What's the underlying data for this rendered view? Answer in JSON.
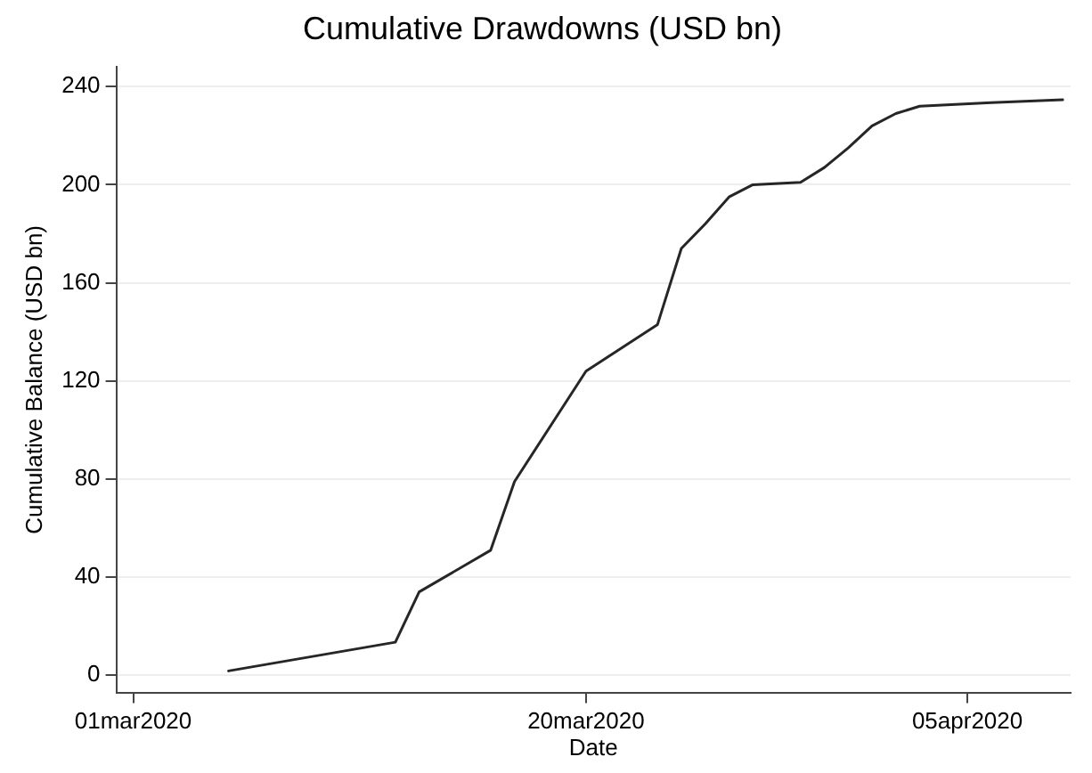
{
  "chart_data": {
    "type": "line",
    "title": "Cumulative Drawdowns (USD bn)",
    "xlabel": "Date",
    "ylabel": "Cumulative Balance (USD bn)",
    "x": [
      "2020-03-05",
      "2020-03-12",
      "2020-03-13",
      "2020-03-16",
      "2020-03-17",
      "2020-03-20",
      "2020-03-23",
      "2020-03-24",
      "2020-03-25",
      "2020-03-26",
      "2020-03-27",
      "2020-03-29",
      "2020-03-30",
      "2020-03-31",
      "2020-04-01",
      "2020-04-02",
      "2020-04-03",
      "2020-04-06",
      "2020-04-09"
    ],
    "series": [
      {
        "color": "#262626",
        "values": [
          1.8,
          13.5,
          34,
          51,
          79,
          124,
          143,
          174,
          184,
          195,
          200,
          201,
          207,
          215,
          224,
          229,
          232,
          233.5,
          234.6
        ]
      }
    ],
    "xlim": [
      "2020-02-29T07:00",
      "2020-04-09T08:00"
    ],
    "xticks": [
      {
        "value": "2020-03-01",
        "label": "01mar2020"
      },
      {
        "value": "2020-03-20",
        "label": "20mar2020"
      },
      {
        "value": "2020-04-05",
        "label": "05apr2020"
      }
    ],
    "ylim": [
      -7,
      248
    ],
    "yticks": [
      0,
      40,
      80,
      120,
      160,
      200,
      240
    ],
    "grid": "y",
    "legend": false,
    "marker": "none",
    "line_style": "solid"
  }
}
